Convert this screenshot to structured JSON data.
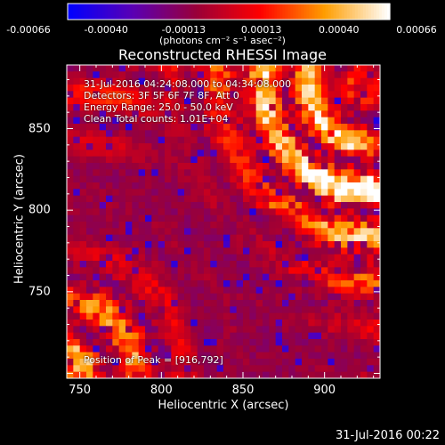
{
  "colorbar": {
    "tick_labels": [
      "-0.00066",
      "-0.00040",
      "-0.00013",
      "0.00013",
      "0.00040",
      "0.00066"
    ],
    "unit_label": "(photons cm⁻² s⁻¹ asec⁻²)",
    "range": [
      -0.00066,
      0.00066
    ]
  },
  "annotations": {
    "time_range": "31-Jul-2016 04:24:08.000 to 04:34:08.000",
    "detectors": "Detectors: 3F 5F 6F 7F 8F, Att 0",
    "energy": "Energy Range: 25.0 - 50.0 keV",
    "method": "Clean    Total counts: 1.01E+04",
    "peak": "Position of Peak = [916,792]"
  },
  "footer": "31-Jul-2016 00:22",
  "chart_data": {
    "type": "heatmap",
    "title": "Reconstructed RHESSI Image",
    "xlabel": "Heliocentric X (arcsec)",
    "ylabel": "Heliocentric Y (arcsec)",
    "xlim": [
      742,
      934
    ],
    "ylim": [
      697,
      889
    ],
    "x_ticks": [
      750,
      800,
      850,
      900
    ],
    "y_ticks": [
      750,
      800,
      850
    ],
    "x_tick_labels": [
      "750",
      "800",
      "850",
      "900"
    ],
    "y_tick_labels": [
      "750",
      "800",
      "850"
    ],
    "peak_position": [
      916,
      792
    ],
    "colormap": [
      "#0000ff",
      "#5a00b4",
      "#9a0038",
      "#ff0000",
      "#ff9d00",
      "#ffffff"
    ]
  }
}
